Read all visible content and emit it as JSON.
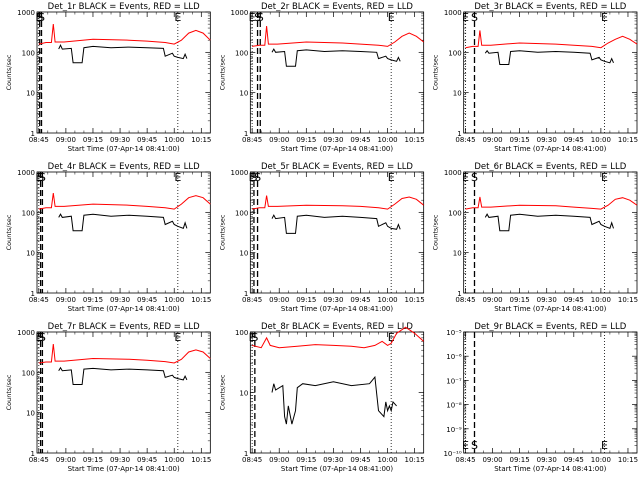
{
  "figure": {
    "background": "#ffffff",
    "series_colors": {
      "events": "#000000",
      "lld": "#ff0000"
    }
  },
  "chart_data": [
    {
      "type": "line",
      "title": "Det_1r BLACK = Events, RED = LLD",
      "xlabel": "Start Time (07-Apr-14 08:41:00)",
      "ylabel": "Counts/sec",
      "scale": "log",
      "ylim": [
        1,
        1000
      ],
      "xticks": [
        "08:45",
        "09:00",
        "09:15",
        "09:30",
        "09:45",
        "10:00",
        "10:15"
      ],
      "yticks": [
        "1",
        "10",
        "100",
        "1000"
      ],
      "markers": [
        {
          "label": "E",
          "t": 0,
          "style": "dotted"
        },
        {
          "label": "S",
          "t": 0.5,
          "style": "dashed"
        },
        {
          "label": "S",
          "t": 1.5,
          "style": "dashed"
        },
        {
          "label": "E",
          "t": 77,
          "style": "dotted"
        }
      ],
      "lld": {
        "t": [
          0,
          4,
          7,
          8,
          9,
          14,
          30,
          50,
          60,
          70,
          75,
          79,
          83,
          87,
          91,
          95
        ],
        "v": [
          160,
          175,
          175,
          500,
          180,
          180,
          210,
          200,
          190,
          175,
          160,
          200,
          300,
          350,
          300,
          200
        ]
      },
      "events": {
        "t": [
          11,
          12,
          13,
          18,
          19,
          24,
          25,
          30,
          40,
          50,
          60,
          69,
          70,
          74,
          75,
          77,
          80,
          81,
          82
        ],
        "v": [
          120,
          150,
          120,
          125,
          55,
          55,
          130,
          140,
          130,
          135,
          130,
          125,
          80,
          95,
          80,
          75,
          70,
          90,
          70
        ]
      }
    },
    {
      "type": "line",
      "title": "Det_2r BLACK = Events, RED = LLD",
      "xlabel": "Start Time (07-Apr-14 08:41:00)",
      "ylabel": "Counts/sec",
      "scale": "log",
      "ylim": [
        1,
        1000
      ],
      "xticks": [
        "08:45",
        "09:00",
        "09:15",
        "09:30",
        "09:45",
        "10:00",
        "10:15"
      ],
      "yticks": [
        "1",
        "10",
        "100",
        "1000"
      ],
      "markers": [
        {
          "label": "E",
          "t": 0,
          "style": "dotted"
        },
        {
          "label": "S",
          "t": 3,
          "style": "dashed"
        },
        {
          "label": "S",
          "t": 4.5,
          "style": "dashed"
        },
        {
          "label": "E",
          "t": 77,
          "style": "dotted"
        }
      ],
      "lld": {
        "t": [
          0,
          4,
          7,
          8,
          9,
          14,
          30,
          50,
          60,
          70,
          75,
          79,
          83,
          87,
          91,
          95
        ],
        "v": [
          140,
          150,
          150,
          450,
          160,
          160,
          180,
          170,
          160,
          150,
          140,
          180,
          250,
          300,
          250,
          180
        ]
      },
      "events": {
        "t": [
          11,
          12,
          13,
          18,
          19,
          24,
          25,
          30,
          40,
          50,
          60,
          69,
          70,
          74,
          75,
          77,
          80,
          81,
          82
        ],
        "v": [
          100,
          120,
          100,
          105,
          45,
          45,
          110,
          115,
          105,
          110,
          105,
          100,
          70,
          80,
          70,
          65,
          60,
          75,
          60
        ]
      }
    },
    {
      "type": "line",
      "title": "Det_3r BLACK = Events, RED = LLD",
      "xlabel": "Start Time (07-Apr-14 08:41:00)",
      "ylabel": "Counts/sec",
      "scale": "log",
      "ylim": [
        1,
        1000
      ],
      "xticks": [
        "08:45",
        "09:00",
        "09:15",
        "09:30",
        "09:45",
        "10:00",
        "10:15"
      ],
      "yticks": [
        "1",
        "10",
        "100",
        "1000"
      ],
      "markers": [
        {
          "label": "E",
          "t": 0,
          "style": "dotted"
        },
        {
          "label": "S",
          "t": 5,
          "style": "dashed"
        },
        {
          "label": "E",
          "t": 77,
          "style": "dotted"
        }
      ],
      "lld": {
        "t": [
          0,
          4,
          7,
          8,
          9,
          14,
          30,
          50,
          60,
          70,
          75,
          79,
          83,
          87,
          91,
          95
        ],
        "v": [
          130,
          140,
          140,
          350,
          150,
          150,
          170,
          160,
          150,
          140,
          130,
          170,
          210,
          250,
          210,
          160
        ]
      },
      "events": {
        "t": [
          11,
          12,
          13,
          18,
          19,
          24,
          25,
          30,
          40,
          50,
          60,
          69,
          70,
          74,
          75,
          77,
          80,
          81,
          82
        ],
        "v": [
          95,
          110,
          95,
          100,
          50,
          50,
          105,
          110,
          100,
          105,
          100,
          95,
          65,
          75,
          65,
          60,
          55,
          70,
          55
        ]
      }
    },
    {
      "type": "line",
      "title": "Det_4r BLACK = Events, RED = LLD",
      "xlabel": "Start Time (07-Apr-14 08:41:00)",
      "ylabel": "Counts/sec",
      "scale": "log",
      "ylim": [
        1,
        1000
      ],
      "xticks": [
        "08:45",
        "09:00",
        "09:15",
        "09:30",
        "09:45",
        "10:00",
        "10:15"
      ],
      "yticks": [
        "1",
        "10",
        "100",
        "1000"
      ],
      "markers": [
        {
          "label": "E",
          "t": 0,
          "style": "dotted"
        },
        {
          "label": "S",
          "t": 1,
          "style": "dashed"
        },
        {
          "label": "S",
          "t": 2,
          "style": "dashed"
        },
        {
          "label": "E",
          "t": 77,
          "style": "dotted"
        }
      ],
      "lld": {
        "t": [
          0,
          4,
          7,
          8,
          9,
          14,
          30,
          50,
          60,
          70,
          75,
          79,
          83,
          87,
          91,
          95
        ],
        "v": [
          120,
          130,
          130,
          300,
          140,
          140,
          160,
          150,
          140,
          130,
          120,
          160,
          230,
          260,
          230,
          160
        ]
      },
      "events": {
        "t": [
          11,
          12,
          13,
          18,
          19,
          24,
          25,
          30,
          40,
          50,
          60,
          69,
          70,
          74,
          75,
          77,
          80,
          81,
          82
        ],
        "v": [
          75,
          90,
          75,
          80,
          35,
          35,
          85,
          90,
          80,
          85,
          80,
          75,
          50,
          60,
          50,
          45,
          40,
          55,
          40
        ]
      }
    },
    {
      "type": "line",
      "title": "Det_5r BLACK = Events, RED = LLD",
      "xlabel": "Start Time (07-Apr-14 08:41:00)",
      "ylabel": "Counts/sec",
      "scale": "log",
      "ylim": [
        1,
        1000
      ],
      "xticks": [
        "08:45",
        "09:00",
        "09:15",
        "09:30",
        "09:45",
        "10:00",
        "10:15"
      ],
      "yticks": [
        "1",
        "10",
        "100",
        "1000"
      ],
      "markers": [
        {
          "label": "E",
          "t": 0,
          "style": "dotted"
        },
        {
          "label": "S",
          "t": 1,
          "style": "dashed"
        },
        {
          "label": "S",
          "t": 3,
          "style": "dashed"
        },
        {
          "label": "E",
          "t": 77,
          "style": "dotted"
        }
      ],
      "lld": {
        "t": [
          0,
          4,
          7,
          8,
          9,
          14,
          30,
          50,
          60,
          70,
          75,
          79,
          83,
          87,
          91,
          95
        ],
        "v": [
          120,
          130,
          130,
          260,
          140,
          140,
          150,
          145,
          140,
          130,
          120,
          160,
          220,
          240,
          210,
          150
        ]
      },
      "events": {
        "t": [
          11,
          12,
          13,
          18,
          19,
          24,
          25,
          30,
          40,
          50,
          60,
          69,
          70,
          74,
          75,
          77,
          80,
          81,
          82
        ],
        "v": [
          70,
          85,
          70,
          75,
          30,
          30,
          80,
          85,
          75,
          80,
          75,
          70,
          45,
          55,
          45,
          40,
          38,
          50,
          38
        ]
      }
    },
    {
      "type": "line",
      "title": "Det_6r BLACK = Events, RED = LLD",
      "xlabel": "Start Time (07-Apr-14 08:41:00)",
      "ylabel": "Counts/sec",
      "scale": "log",
      "ylim": [
        1,
        1000
      ],
      "xticks": [
        "08:45",
        "09:00",
        "09:15",
        "09:30",
        "09:45",
        "10:00",
        "10:15"
      ],
      "yticks": [
        "1",
        "10",
        "100",
        "1000"
      ],
      "markers": [
        {
          "label": "E",
          "t": 0,
          "style": "dotted"
        },
        {
          "label": "S",
          "t": 5,
          "style": "dashed"
        },
        {
          "label": "E",
          "t": 77,
          "style": "dotted"
        }
      ],
      "lld": {
        "t": [
          0,
          4,
          7,
          8,
          9,
          14,
          30,
          50,
          60,
          70,
          75,
          79,
          83,
          87,
          91,
          95
        ],
        "v": [
          120,
          130,
          130,
          240,
          135,
          135,
          150,
          145,
          135,
          125,
          120,
          150,
          210,
          230,
          200,
          150
        ]
      },
      "events": {
        "t": [
          11,
          12,
          13,
          18,
          19,
          24,
          25,
          30,
          40,
          50,
          60,
          69,
          70,
          74,
          75,
          77,
          80,
          81,
          82
        ],
        "v": [
          75,
          90,
          75,
          80,
          35,
          35,
          85,
          90,
          80,
          85,
          80,
          75,
          50,
          60,
          50,
          45,
          40,
          55,
          40
        ]
      }
    },
    {
      "type": "line",
      "title": "Det_7r BLACK = Events, RED = LLD",
      "xlabel": "Start Time (07-Apr-14 08:41:00)",
      "ylabel": "Counts/sec",
      "scale": "log",
      "ylim": [
        1,
        1000
      ],
      "xticks": [
        "08:45",
        "09:00",
        "09:15",
        "09:30",
        "09:45",
        "10:00",
        "10:15"
      ],
      "yticks": [
        "1",
        "10",
        "100",
        "1000"
      ],
      "markers": [
        {
          "label": "E",
          "t": 0,
          "style": "dotted"
        },
        {
          "label": "S",
          "t": 1,
          "style": "dashed"
        },
        {
          "label": "S",
          "t": 2,
          "style": "dashed"
        },
        {
          "label": "E",
          "t": 77,
          "style": "dotted"
        }
      ],
      "lld": {
        "t": [
          0,
          4,
          7,
          8,
          9,
          14,
          30,
          50,
          60,
          70,
          75,
          79,
          83,
          87,
          91,
          95
        ],
        "v": [
          170,
          180,
          180,
          500,
          190,
          190,
          220,
          210,
          200,
          185,
          170,
          210,
          320,
          360,
          320,
          220
        ]
      },
      "events": {
        "t": [
          11,
          12,
          13,
          18,
          19,
          24,
          25,
          30,
          40,
          50,
          60,
          69,
          70,
          74,
          75,
          77,
          80,
          81,
          82
        ],
        "v": [
          110,
          130,
          110,
          115,
          50,
          50,
          120,
          125,
          115,
          120,
          115,
          110,
          75,
          85,
          75,
          70,
          65,
          80,
          65
        ]
      }
    },
    {
      "type": "line",
      "title": "Det_8r BLACK = Events, RED = LLD",
      "xlabel": "Start Time (07-Apr-14 08:41:00)",
      "ylabel": "Counts/sec",
      "scale": "log",
      "ylim": [
        1,
        100
      ],
      "xticks": [
        "08:45",
        "09:00",
        "09:15",
        "09:30",
        "09:45",
        "10:00",
        "10:15"
      ],
      "yticks": [
        "1",
        "10",
        "100"
      ],
      "markers": [
        {
          "label": "E",
          "t": 0,
          "style": "dotted"
        },
        {
          "label": "S",
          "t": 1.5,
          "style": "dashed"
        },
        {
          "label": "E",
          "t": 77,
          "style": "dotted"
        }
      ],
      "lld": {
        "t": [
          0,
          5,
          8,
          10,
          15,
          25,
          35,
          45,
          55,
          62,
          68,
          72,
          75,
          77,
          80,
          85,
          90,
          95
        ],
        "v": [
          60,
          55,
          80,
          60,
          55,
          58,
          62,
          60,
          58,
          55,
          60,
          70,
          60,
          65,
          95,
          120,
          95,
          70
        ]
      },
      "events": {
        "t": [
          11,
          12,
          13,
          17,
          18,
          19,
          20,
          22,
          24,
          25,
          28,
          35,
          45,
          55,
          65,
          68,
          70,
          73,
          74,
          75,
          76,
          77,
          78,
          80
        ],
        "v": [
          10,
          14,
          11,
          13,
          4,
          3,
          6,
          3,
          5,
          12,
          14,
          13,
          15,
          13,
          14,
          18,
          5,
          4,
          7,
          5,
          6,
          5,
          7,
          6
        ]
      }
    },
    {
      "type": "line",
      "title": "Det_9r BLACK = Events, RED = LLD",
      "xlabel": "Start Time (07-Apr-14 08:41:00)",
      "ylabel": "",
      "scale": "log",
      "ylim": [
        1e-10,
        1e-05
      ],
      "xticks": [
        "08:45",
        "09:00",
        "09:15",
        "09:30",
        "09:45",
        "10:00",
        "10:15"
      ],
      "yticks": [
        "10⁻¹⁰",
        "10⁻⁹",
        "10⁻⁸",
        "10⁻⁷",
        "10⁻⁶",
        "10⁻⁵"
      ],
      "markers": [
        {
          "label": "E",
          "t": 0,
          "style": "dotted"
        },
        {
          "label": "S",
          "t": 5,
          "style": "dashed"
        },
        {
          "label": "E",
          "t": 77,
          "style": "dotted"
        }
      ],
      "marker_labels_at": "bottom",
      "lld": {
        "t": [],
        "v": []
      },
      "events": {
        "t": [],
        "v": []
      }
    }
  ]
}
